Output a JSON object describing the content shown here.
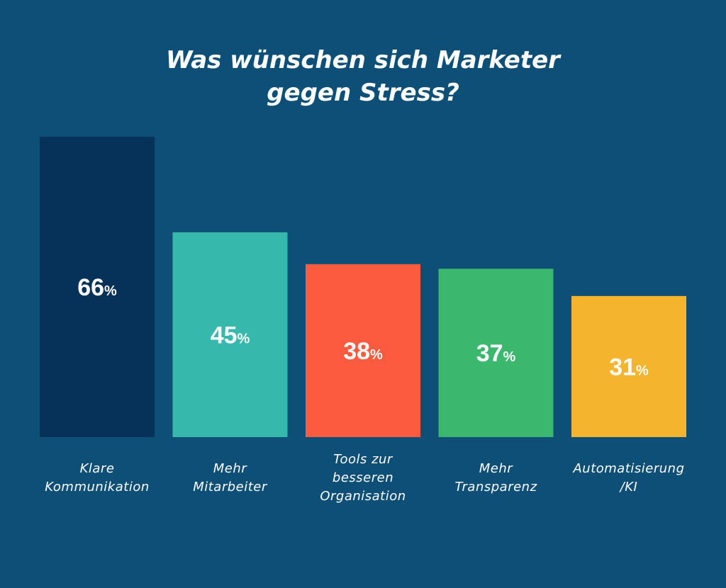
{
  "chart_data": {
    "type": "bar",
    "title": [
      "Was wünschen sich Marketer",
      "gegen Stress?"
    ],
    "categories": [
      [
        "Klare",
        "Kommunikation"
      ],
      [
        "Mehr",
        "Mitarbeiter"
      ],
      [
        "Tools zur",
        "besseren",
        "Organisation"
      ],
      [
        "Mehr",
        "Transparenz"
      ],
      [
        "Automatisierung",
        "/KI"
      ]
    ],
    "values": [
      66,
      45,
      38,
      37,
      31
    ],
    "value_labels": [
      "66",
      "45",
      "38",
      "37",
      "31"
    ],
    "unit": "%",
    "colors": [
      "#06325a",
      "#36b8ad",
      "#fd5b3f",
      "#3cb76e",
      "#f4b42d"
    ],
    "ylim": [
      0,
      66
    ],
    "grid": false,
    "axes_visible": false,
    "background": "#0e4f77"
  }
}
